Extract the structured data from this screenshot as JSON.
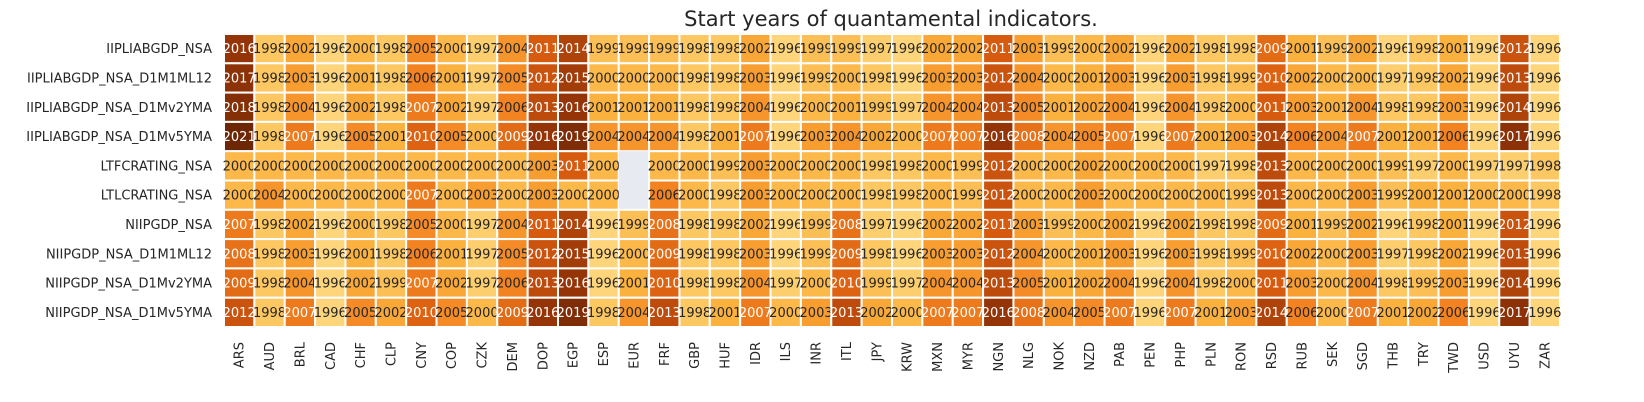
{
  "chart_data": {
    "type": "heatmap",
    "title": "Start years of quantamental indicators.",
    "rows": [
      "IIPLIABGDP_NSA",
      "IIPLIABGDP_NSA_D1M1ML12",
      "IIPLIABGDP_NSA_D1Mv2YMA",
      "IIPLIABGDP_NSA_D1Mv5YMA",
      "LTFCRATING_NSA",
      "LTLCRATING_NSA",
      "NIIPGDP_NSA",
      "NIIPGDP_NSA_D1M1ML12",
      "NIIPGDP_NSA_D1Mv2YMA",
      "NIIPGDP_NSA_D1Mv5YMA"
    ],
    "columns": [
      "ARS",
      "AUD",
      "BRL",
      "CAD",
      "CHF",
      "CLP",
      "CNY",
      "COP",
      "CZK",
      "DEM",
      "DOP",
      "EGP",
      "ESP",
      "EUR",
      "FRF",
      "GBP",
      "HUF",
      "IDR",
      "ILS",
      "INR",
      "ITL",
      "JPY",
      "KRW",
      "MXN",
      "MYR",
      "NGN",
      "NLG",
      "NOK",
      "NZD",
      "PAB",
      "PEN",
      "PHP",
      "PLN",
      "RON",
      "RSD",
      "RUB",
      "SEK",
      "SGD",
      "THB",
      "TRY",
      "TWD",
      "USD",
      "UYU",
      "ZAR"
    ],
    "values": [
      [
        2016,
        1998,
        2002,
        1996,
        2000,
        1998,
        2005,
        2000,
        1997,
        2004,
        2011,
        2014,
        1999,
        1999,
        1999,
        1998,
        1998,
        2002,
        1996,
        1999,
        1999,
        1997,
        1996,
        2002,
        2002,
        2011,
        2003,
        1999,
        2000,
        2002,
        1996,
        2002,
        1998,
        1998,
        2009,
        2001,
        1999,
        2002,
        1996,
        1998,
        2001,
        1996,
        2012,
        1996
      ],
      [
        2017,
        1998,
        2003,
        1996,
        2001,
        1998,
        2006,
        2001,
        1997,
        2005,
        2012,
        2015,
        2000,
        2000,
        2000,
        1998,
        1998,
        2003,
        1996,
        1999,
        2000,
        1998,
        1996,
        2003,
        2003,
        2012,
        2004,
        2000,
        2001,
        2003,
        1996,
        2003,
        1998,
        1999,
        2010,
        2002,
        2000,
        2000,
        1997,
        1998,
        2002,
        1996,
        2013,
        1996
      ],
      [
        2018,
        1998,
        2004,
        1996,
        2002,
        1998,
        2007,
        2002,
        1997,
        2006,
        2013,
        2016,
        2001,
        2001,
        2001,
        1998,
        1998,
        2004,
        1996,
        2000,
        2001,
        1999,
        1997,
        2004,
        2004,
        2013,
        2005,
        2001,
        2002,
        2004,
        1996,
        2004,
        1998,
        2000,
        2011,
        2003,
        2001,
        2004,
        1998,
        1998,
        2003,
        1996,
        2014,
        1996
      ],
      [
        2021,
        1998,
        2007,
        1996,
        2005,
        2001,
        2010,
        2005,
        2000,
        2009,
        2016,
        2019,
        2004,
        2004,
        2004,
        1998,
        2001,
        2007,
        1996,
        2003,
        2004,
        2002,
        2000,
        2007,
        2007,
        2016,
        2008,
        2004,
        2005,
        2007,
        1996,
        2007,
        2001,
        2003,
        2014,
        2006,
        2004,
        2007,
        2001,
        2001,
        2006,
        1996,
        2017,
        1996
      ],
      [
        2000,
        2000,
        2000,
        2000,
        2000,
        2000,
        2000,
        2000,
        2000,
        2000,
        2003,
        2011,
        2000,
        null,
        2000,
        2000,
        1999,
        2003,
        2000,
        2000,
        2000,
        1998,
        1998,
        2000,
        1999,
        2012,
        2000,
        2000,
        2002,
        2000,
        2000,
        2000,
        1997,
        1998,
        2013,
        2000,
        2000,
        2000,
        1999,
        1997,
        2000,
        1997,
        1997,
        1998
      ],
      [
        2000,
        2004,
        2000,
        2000,
        2000,
        2000,
        2007,
        2000,
        2003,
        2000,
        2003,
        2000,
        2000,
        null,
        2006,
        2000,
        1998,
        2003,
        2000,
        2000,
        2000,
        1998,
        1998,
        2000,
        1999,
        2012,
        2000,
        2000,
        2003,
        2000,
        2000,
        2000,
        2000,
        1999,
        2013,
        2000,
        2000,
        2003,
        1999,
        2001,
        2001,
        2000,
        2000,
        1998
      ],
      [
        2007,
        1998,
        2002,
        1996,
        2000,
        1998,
        2005,
        2000,
        1997,
        2004,
        2011,
        2014,
        1996,
        1999,
        2008,
        1998,
        1998,
        2002,
        1996,
        1999,
        2008,
        1997,
        1996,
        2002,
        2002,
        2011,
        2003,
        1999,
        2000,
        2002,
        1996,
        2002,
        1998,
        1998,
        2009,
        2001,
        1999,
        2002,
        1996,
        1998,
        2001,
        1996,
        2012,
        1996
      ],
      [
        2008,
        1998,
        2003,
        1996,
        2001,
        1998,
        2006,
        2001,
        1997,
        2005,
        2012,
        2015,
        1996,
        2000,
        2009,
        1998,
        1998,
        2003,
        1996,
        1999,
        2009,
        1998,
        1996,
        2003,
        2003,
        2012,
        2004,
        2000,
        2001,
        2003,
        1996,
        2003,
        1998,
        1999,
        2010,
        2002,
        2000,
        2003,
        1997,
        1998,
        2002,
        1996,
        2013,
        1996
      ],
      [
        2009,
        1998,
        2004,
        1996,
        2002,
        1999,
        2007,
        2002,
        1997,
        2006,
        2013,
        2016,
        1996,
        2001,
        2010,
        1998,
        1998,
        2004,
        1997,
        2000,
        2010,
        1999,
        1997,
        2004,
        2004,
        2013,
        2005,
        2001,
        2002,
        2004,
        1996,
        2004,
        1998,
        2000,
        2011,
        2003,
        2000,
        2004,
        1998,
        1999,
        2003,
        1996,
        2014,
        1996
      ],
      [
        2012,
        1998,
        2007,
        1996,
        2005,
        2002,
        2010,
        2005,
        2000,
        2009,
        2016,
        2019,
        1998,
        2004,
        2013,
        1998,
        2001,
        2007,
        2000,
        2003,
        2013,
        2002,
        2000,
        2007,
        2007,
        2016,
        2008,
        2004,
        2005,
        2007,
        1996,
        2007,
        2001,
        2003,
        2014,
        2006,
        2000,
        2007,
        2001,
        2002,
        2006,
        1996,
        2017,
        1996
      ]
    ],
    "vmin": 1996,
    "vmax": 2021,
    "colormap_stops": [
      "#fed57a",
      "#fbb13d",
      "#f38220",
      "#d75b0f",
      "#953507",
      "#6e2705"
    ],
    "colorbar": "none",
    "missing_color": "#e8eaf2"
  }
}
